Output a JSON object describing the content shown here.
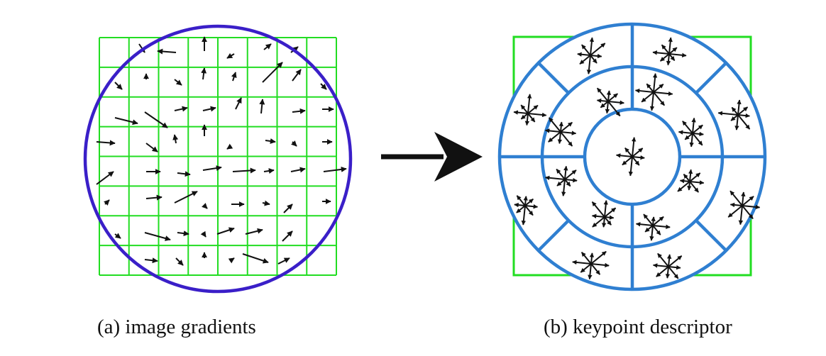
{
  "captions": {
    "a": "(a) image gradients",
    "b": "(b) keypoint descriptor"
  },
  "colors": {
    "grid": "#22dd22",
    "gradient_circle": "#3a1fc8",
    "descriptor_rings": "#2f7fd1",
    "arrow": "#111111"
  },
  "panel_a": {
    "grid_cells": [
      8,
      8
    ]
  },
  "panel_b": {
    "rings": 3,
    "outer_sectors": 8,
    "middle_sectors": 8,
    "center_bins": 1,
    "histogram_orientations": 8
  }
}
